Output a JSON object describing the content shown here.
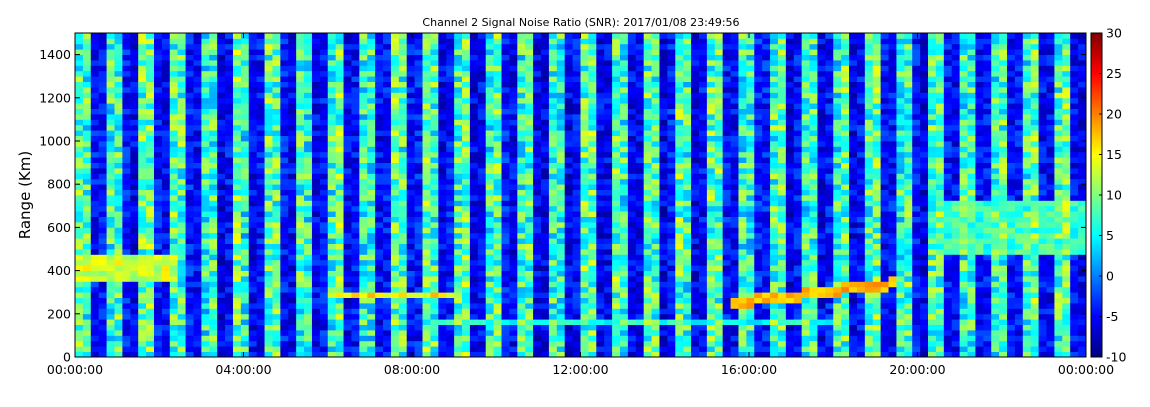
{
  "chart_data": {
    "type": "heatmap",
    "title": "Channel 2 Signal Noise Ratio (SNR): 2017/01/08 23:49:56",
    "xlabel": "",
    "ylabel": "Range (Km)",
    "x_tick_labels": [
      "00:00:00",
      "04:00:00",
      "08:00:00",
      "12:00:00",
      "16:00:00",
      "20:00:00",
      "00:00:00"
    ],
    "xlim_hours": [
      0,
      24
    ],
    "y_ticks": [
      0,
      200,
      400,
      600,
      800,
      1000,
      1200,
      1400
    ],
    "ylim": [
      0,
      1500
    ],
    "colorbar": {
      "ticks": [
        -10,
        -5,
        0,
        5,
        10,
        15,
        20,
        25,
        30
      ],
      "range": [
        -10,
        30
      ],
      "colormap": "jet"
    },
    "colormap_stops": [
      "#00007f",
      "#0000ff",
      "#007fff",
      "#00ffff",
      "#7fff7f",
      "#ffff00",
      "#ff7f00",
      "#ff0000",
      "#7f0000"
    ],
    "features": [
      {
        "description": "alternating high and low SNR vertical bands across the full range",
        "x_hours": [
          0,
          24
        ],
        "snr_high": 10,
        "snr_low": -8
      },
      {
        "description": "low-range enhancement at ~380-460 Km",
        "x_hours": [
          0,
          2.5
        ],
        "range_km": [
          360,
          480
        ],
        "snr": 16
      },
      {
        "description": "horizontal echo layer near 290 Km",
        "x_hours": [
          6,
          9
        ],
        "range_km": 285,
        "snr": 18
      },
      {
        "description": "horizontal echo layer near 160 Km",
        "x_hours": [
          8.5,
          18
        ],
        "range_km": 160,
        "snr": 8
      },
      {
        "description": "rising echo layer 250 to 340 Km",
        "x_hours": [
          15.5,
          19.5
        ],
        "range_km": [
          250,
          340
        ],
        "snr": 20
      },
      {
        "description": "broad enhancement 500-700 Km",
        "x_hours": [
          20.5,
          24
        ],
        "range_km": [
          480,
          720
        ],
        "snr": 10
      }
    ]
  }
}
